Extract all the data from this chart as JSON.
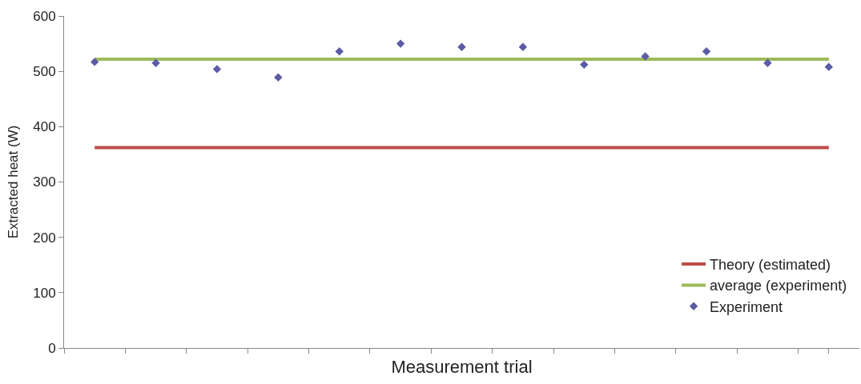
{
  "chart_data": {
    "type": "scatter",
    "xlabel": "Measurement trial",
    "ylabel": "Extracted heat (W)",
    "categories": [
      null,
      null,
      null,
      null,
      null,
      null,
      null,
      null,
      null,
      null,
      null,
      null,
      null
    ],
    "series": [
      {
        "name": "Theory (estimated)",
        "type": "line",
        "color": "#be4b48",
        "values": [
          362,
          362,
          362,
          362,
          362,
          362,
          362,
          362,
          362,
          362,
          362,
          362,
          362
        ]
      },
      {
        "name": "average (experiment)",
        "type": "line",
        "color": "#9bbb59",
        "values": [
          522,
          522,
          522,
          522,
          522,
          522,
          522,
          522,
          522,
          522,
          522,
          522,
          522
        ]
      },
      {
        "name": "Experiment",
        "marker": "diamond",
        "color": "#5b5ba6",
        "values": [
          517,
          515,
          504,
          489,
          536,
          550,
          544,
          544,
          512,
          527,
          536,
          515,
          508
        ]
      }
    ],
    "ylim": [
      0,
      600
    ],
    "yticks": [
      0,
      100,
      200,
      300,
      400,
      500,
      600
    ],
    "grid": false,
    "legend": "bottom right",
    "tick_labels": "y"
  }
}
